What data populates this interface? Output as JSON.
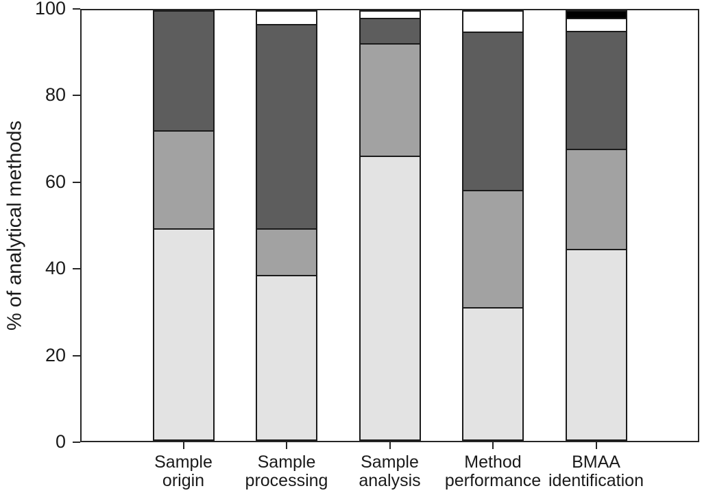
{
  "chart_data": {
    "type": "bar",
    "stacked": true,
    "title": "",
    "xlabel": "",
    "ylabel": "% of analytical methods",
    "ylim": [
      0,
      100
    ],
    "yticks": [
      0,
      20,
      40,
      60,
      80,
      100
    ],
    "grid": false,
    "legend": "none",
    "categories": [
      "Sample origin",
      "Sample processing",
      "Sample analysis",
      "Method performance",
      "BMAA identification"
    ],
    "category_label_lines": [
      [
        "Sample",
        "origin"
      ],
      [
        "Sample",
        "processing"
      ],
      [
        "Sample",
        "analysis"
      ],
      [
        "Method",
        "performance"
      ],
      [
        "BMAA",
        "identification"
      ]
    ],
    "series": [
      {
        "name": "light-gray-segment",
        "color": "#e3e3e3",
        "values": [
          49.4,
          38.5,
          66.3,
          30.9,
          44.6
        ]
      },
      {
        "name": "medium-gray-segment",
        "color": "#a2a2a2",
        "values": [
          22.9,
          10.9,
          26.3,
          27.4,
          23.3
        ]
      },
      {
        "name": "dark-gray-segment",
        "color": "#5d5d5d",
        "values": [
          27.7,
          47.7,
          5.9,
          37.1,
          27.6
        ]
      },
      {
        "name": "white-segment",
        "color": "#ffffff",
        "values": [
          0,
          2.9,
          1.5,
          4.6,
          3.1
        ]
      },
      {
        "name": "black-segment",
        "color": "#000000",
        "values": [
          0,
          0,
          0,
          0,
          1.4
        ]
      }
    ]
  },
  "colors": {
    "axis": "#262626",
    "bar_border": "#1a1a1a",
    "background": "#ffffff"
  }
}
